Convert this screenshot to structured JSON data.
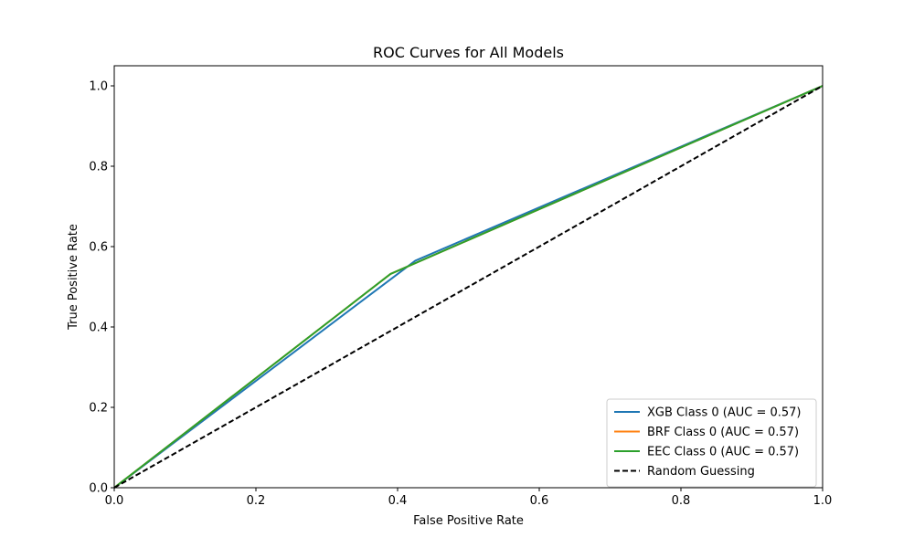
{
  "chart_data": {
    "type": "line",
    "title": "ROC Curves for All Models",
    "xlabel": "False Positive Rate",
    "ylabel": "True Positive Rate",
    "xlim": [
      0.0,
      1.0
    ],
    "ylim": [
      0.0,
      1.05
    ],
    "xticks": [
      "0.0",
      "0.2",
      "0.4",
      "0.6",
      "0.8",
      "1.0"
    ],
    "yticks": [
      "0.0",
      "0.2",
      "0.4",
      "0.6",
      "0.8",
      "1.0"
    ],
    "grid": false,
    "legend_position": "lower-right",
    "series": [
      {
        "name": "XGB Class 0 (AUC = 0.57)",
        "color": "#1f77b4",
        "dash": "solid",
        "x": [
          0.0,
          0.425,
          1.0
        ],
        "y": [
          0.0,
          0.565,
          1.0
        ]
      },
      {
        "name": "BRF Class 0 (AUC = 0.57)",
        "color": "#ff7f0e",
        "dash": "solid",
        "x": [
          0.0,
          0.39,
          1.0
        ],
        "y": [
          0.0,
          0.532,
          1.0
        ]
      },
      {
        "name": "EEC Class 0 (AUC = 0.57)",
        "color": "#2ca02c",
        "dash": "solid",
        "x": [
          0.0,
          0.39,
          1.0
        ],
        "y": [
          0.0,
          0.532,
          1.0
        ]
      },
      {
        "name": "Random Guessing",
        "color": "#000000",
        "dash": "dashed",
        "x": [
          0.0,
          1.0
        ],
        "y": [
          0.0,
          1.0
        ]
      }
    ]
  }
}
